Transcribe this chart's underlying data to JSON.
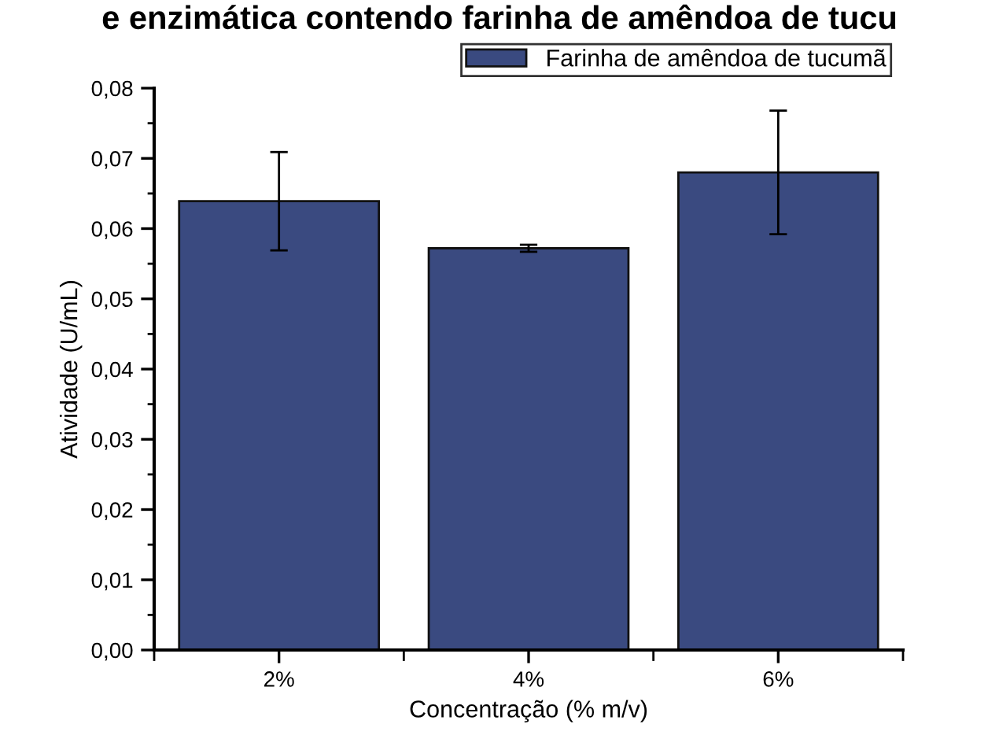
{
  "chart_data": {
    "type": "bar",
    "title": "e enzimática contendo farinha de amêndoa de tucu",
    "xlabel": "Concentração (% m/v)",
    "ylabel": "Atividade (U/mL)",
    "categories": [
      "2%",
      "4%",
      "6%"
    ],
    "series": [
      {
        "name": "Farinha de amêndoa de tucumã",
        "color": "#3a4a80",
        "values": [
          0.0639,
          0.0572,
          0.068
        ],
        "errors": [
          0.007,
          0.0005,
          0.0088
        ]
      }
    ],
    "ylim": [
      0,
      0.08
    ],
    "yticks": [
      {
        "value": 0,
        "label": "0,00"
      },
      {
        "value": 0.01,
        "label": "0,01"
      },
      {
        "value": 0.02,
        "label": "0,02"
      },
      {
        "value": 0.03,
        "label": "0,03"
      },
      {
        "value": 0.04,
        "label": "0,04"
      },
      {
        "value": 0.05,
        "label": "0,05"
      },
      {
        "value": 0.06,
        "label": "0,06"
      },
      {
        "value": 0.07,
        "label": "0,07"
      },
      {
        "value": 0.08,
        "label": "0,08"
      }
    ],
    "grid": false,
    "legend": "top right"
  }
}
